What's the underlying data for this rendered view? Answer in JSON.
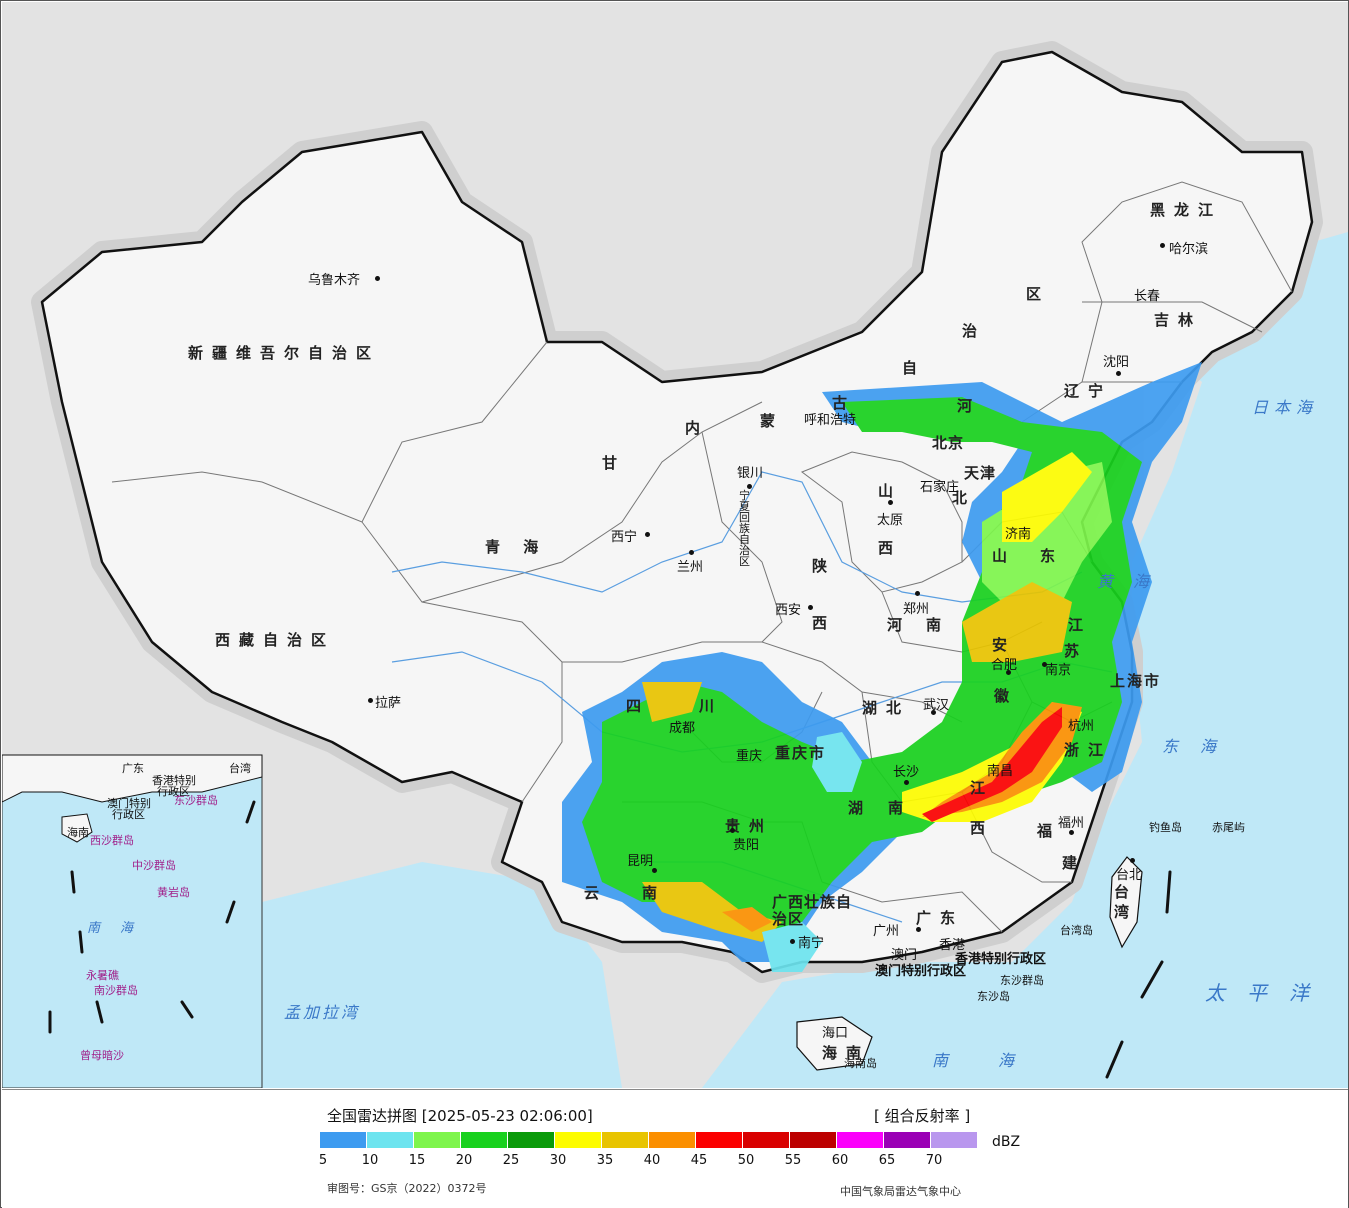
{
  "map": {
    "colors": {
      "background": "#e3e3e3",
      "land": "#f6f6f6",
      "sea": "#bfe8f7",
      "border": "#111111",
      "province_line": "#777777",
      "river": "#5a9ee0"
    },
    "provinces": [
      {
        "id": "xinjiang",
        "label": "新疆维吾尔自治区"
      },
      {
        "id": "xizang",
        "label": "西藏自治区"
      },
      {
        "id": "qinghai",
        "label": "青   海"
      },
      {
        "id": "gansu",
        "label": "甘"
      },
      {
        "id": "neimenggu_a",
        "label": "内"
      },
      {
        "id": "neimenggu_b",
        "label": "蒙"
      },
      {
        "id": "neimenggu_c",
        "label": "古"
      },
      {
        "id": "neimenggu_d",
        "label": "自"
      },
      {
        "id": "neimenggu_e",
        "label": "治"
      },
      {
        "id": "neimenggu_f",
        "label": "区"
      },
      {
        "id": "heilongjiang",
        "label": "黑龙江"
      },
      {
        "id": "jilin",
        "label": "吉林"
      },
      {
        "id": "liaoning",
        "label": "辽宁"
      },
      {
        "id": "hebei_a",
        "label": "河"
      },
      {
        "id": "hebei_b",
        "label": "北"
      },
      {
        "id": "shanxi_a",
        "label": "山"
      },
      {
        "id": "shanxi_b",
        "label": "西"
      },
      {
        "id": "shaanxi_a",
        "label": "陕"
      },
      {
        "id": "shaanxi_b",
        "label": "西"
      },
      {
        "id": "ningxia",
        "label": "宁夏回族自治区"
      },
      {
        "id": "sichuan_a",
        "label": "四"
      },
      {
        "id": "sichuan_b",
        "label": "川"
      },
      {
        "id": "chongqing",
        "label": "重庆市"
      },
      {
        "id": "guizhou",
        "label": "贵州"
      },
      {
        "id": "yunnan_a",
        "label": "云"
      },
      {
        "id": "yunnan_b",
        "label": "南"
      },
      {
        "id": "guangxi",
        "label": "广西壮族自治区"
      },
      {
        "id": "guangdong",
        "label": "广东"
      },
      {
        "id": "hunan_a",
        "label": "湖"
      },
      {
        "id": "hunan_b",
        "label": "南"
      },
      {
        "id": "hubei",
        "label": "湖北"
      },
      {
        "id": "henan_a",
        "label": "河"
      },
      {
        "id": "henan_b",
        "label": "南"
      },
      {
        "id": "shandong_a",
        "label": "山"
      },
      {
        "id": "shandong_b",
        "label": "东"
      },
      {
        "id": "jiangsu_a",
        "label": "江"
      },
      {
        "id": "jiangsu_b",
        "label": "苏"
      },
      {
        "id": "anhui_a",
        "label": "安"
      },
      {
        "id": "anhui_b",
        "label": "徽"
      },
      {
        "id": "zhejiang",
        "label": "浙江"
      },
      {
        "id": "jiangxi_a",
        "label": "江"
      },
      {
        "id": "jiangxi_b",
        "label": "西"
      },
      {
        "id": "fujian_a",
        "label": "福"
      },
      {
        "id": "fujian_b",
        "label": "建"
      },
      {
        "id": "taiwan",
        "label": "台湾"
      },
      {
        "id": "hainan",
        "label": "海南"
      },
      {
        "id": "shanghai",
        "label": "上海市"
      },
      {
        "id": "hk_sar",
        "label": "香港特别行政区"
      },
      {
        "id": "macao_sar",
        "label": "澳门特别行政区"
      },
      {
        "id": "beijing",
        "label": "北京"
      },
      {
        "id": "tianjin",
        "label": "天津"
      }
    ],
    "cities": [
      {
        "id": "urumqi",
        "label": "乌鲁木齐"
      },
      {
        "id": "lhasa",
        "label": "拉萨"
      },
      {
        "id": "xining",
        "label": "西宁"
      },
      {
        "id": "lanzhou",
        "label": "兰州"
      },
      {
        "id": "yinchuan",
        "label": "银川"
      },
      {
        "id": "hohhot",
        "label": "呼和浩特"
      },
      {
        "id": "shijiazhuang",
        "label": "石家庄"
      },
      {
        "id": "taiyuan",
        "label": "太原"
      },
      {
        "id": "xian",
        "label": "西安"
      },
      {
        "id": "zhengzhou",
        "label": "郑州"
      },
      {
        "id": "jinan",
        "label": "济南"
      },
      {
        "id": "hefei",
        "label": "合肥"
      },
      {
        "id": "nanjing",
        "label": "南京"
      },
      {
        "id": "hangzhou",
        "label": "杭州"
      },
      {
        "id": "wuhan",
        "label": "武汉"
      },
      {
        "id": "changsha",
        "label": "长沙"
      },
      {
        "id": "nanchang",
        "label": "南昌"
      },
      {
        "id": "fuzhou",
        "label": "福州"
      },
      {
        "id": "taipei",
        "label": "台北"
      },
      {
        "id": "guangzhou",
        "label": "广州"
      },
      {
        "id": "macao",
        "label": "澳门"
      },
      {
        "id": "hongkong",
        "label": "香港"
      },
      {
        "id": "nanning",
        "label": "南宁"
      },
      {
        "id": "haikou",
        "label": "海口"
      },
      {
        "id": "kunming",
        "label": "昆明"
      },
      {
        "id": "guiyang",
        "label": "贵阳"
      },
      {
        "id": "chengdu",
        "label": "成都"
      },
      {
        "id": "chongqing_city",
        "label": "重庆"
      },
      {
        "id": "shenyang",
        "label": "沈阳"
      },
      {
        "id": "changchun",
        "label": "长春"
      },
      {
        "id": "harbin",
        "label": "哈尔滨"
      }
    ],
    "seas": [
      {
        "id": "japan_sea",
        "label": "日本海"
      },
      {
        "id": "yellow_sea",
        "label": "黄海"
      },
      {
        "id": "east_sea",
        "label": "东海"
      },
      {
        "id": "south_sea",
        "label": "南海"
      },
      {
        "id": "pacific",
        "label": "太平洋"
      },
      {
        "id": "bengal",
        "label": "孟加拉湾"
      },
      {
        "id": "inset_south_sea",
        "label": "南海"
      }
    ],
    "islands": [
      {
        "id": "diaoyu",
        "label": "钓鱼岛"
      },
      {
        "id": "chiwei",
        "label": "赤尾屿"
      },
      {
        "id": "taiwan_island",
        "label": "台湾岛"
      },
      {
        "id": "dongsha_islands",
        "label": "东沙群岛"
      },
      {
        "id": "dongsha_island",
        "label": "东沙岛"
      },
      {
        "id": "hainan_island",
        "label": "海南岛"
      }
    ],
    "inset_labels": [
      {
        "id": "inset_guangdong",
        "label": "广东"
      },
      {
        "id": "inset_taiwan",
        "label": "台湾"
      },
      {
        "id": "inset_hk",
        "label": "香港特别"
      },
      {
        "id": "inset_hk2",
        "label": "行政区"
      },
      {
        "id": "inset_macao",
        "label": "澳门特别"
      },
      {
        "id": "inset_macao2",
        "label": "行政区"
      },
      {
        "id": "inset_dongsha",
        "label": "东沙群岛"
      },
      {
        "id": "inset_xisha",
        "label": "西沙群岛"
      },
      {
        "id": "inset_zhongsha",
        "label": "中沙群岛"
      },
      {
        "id": "inset_huangyan",
        "label": "黄岩岛"
      },
      {
        "id": "inset_nansha",
        "label": "南沙群岛"
      },
      {
        "id": "inset_zengmu",
        "label": "曾母暗沙"
      },
      {
        "id": "inset_yongshu",
        "label": "永暑礁"
      },
      {
        "id": "inset_hainan",
        "label": "海南"
      }
    ]
  },
  "legend": {
    "title": "全国雷达拼图 [2025-05-23 02:06:00]",
    "product": "[ 组合反射率 ]",
    "unit": "dBZ",
    "colors": [
      "#3d9bf0",
      "#6de4ef",
      "#7ef54c",
      "#18d11e",
      "#0a9a0a",
      "#fdfc00",
      "#e8c400",
      "#fb8f00",
      "#fb0000",
      "#d90000",
      "#bc0000",
      "#fb00fb",
      "#9a00b5",
      "#b997ee"
    ],
    "ticks": [
      "5",
      "10",
      "15",
      "20",
      "25",
      "30",
      "35",
      "40",
      "45",
      "50",
      "55",
      "60",
      "65",
      "70"
    ],
    "review_number": "审图号：GS京（2022）0372号",
    "organization": "中国气象局雷达气象中心"
  }
}
